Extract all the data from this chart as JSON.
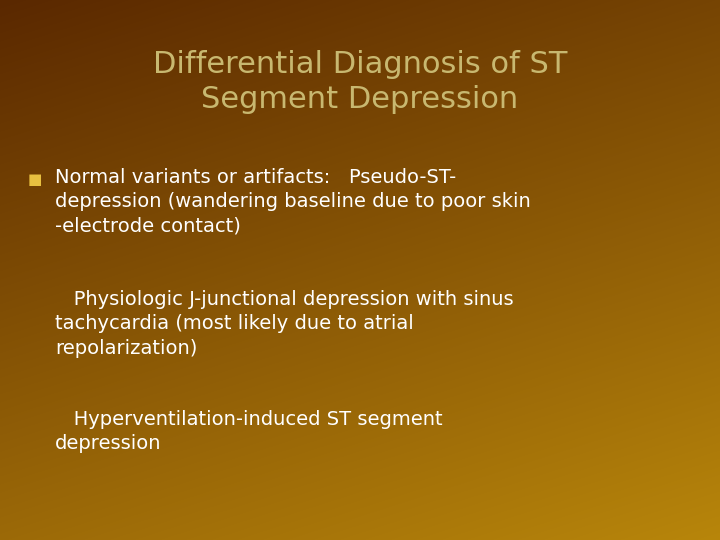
{
  "title_line1": "Differential Diagnosis of ST",
  "title_line2": "Segment Depression",
  "title_color": "#c8b870",
  "bg_color_top_left": "#5a2800",
  "bg_color_bottom_right": "#b8860b",
  "bullet_color": "#e8c040",
  "text_color": "#ffffff",
  "bullet1_label": "Normal variants or artifacts:   Pseudo-ST-\ndepression (wandering baseline due to poor skin\n-electrode contact)",
  "bullet2_text": "   Physiologic J-junctional depression with sinus\ntachycardia (most likely due to atrial\nrepolarization)",
  "bullet3_text": "   Hyperventilation-induced ST segment\ndepression",
  "title_fontsize": 22,
  "body_fontsize": 14,
  "bullet_marker": "■"
}
